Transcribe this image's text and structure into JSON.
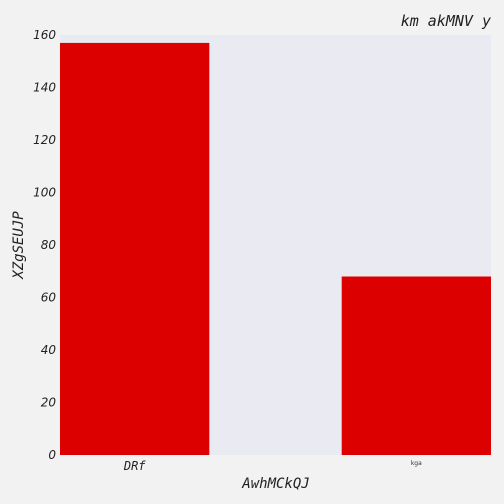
{
  "chart_data": {
    "type": "bar",
    "title": "km akMNV y",
    "xlabel": "AwhMCkQJ",
    "ylabel": "XZgSEUJP",
    "categories": [
      "DRf",
      "kga"
    ],
    "values": [
      157,
      68
    ],
    "ylim": [
      0,
      160
    ],
    "yticks": [
      0,
      20,
      40,
      60,
      80,
      100,
      120,
      140,
      160
    ],
    "grid": false,
    "colors": {
      "bar": "#dd0000",
      "plot_background": "#eaeaf2",
      "figure_background": "#f2f2f2"
    }
  }
}
